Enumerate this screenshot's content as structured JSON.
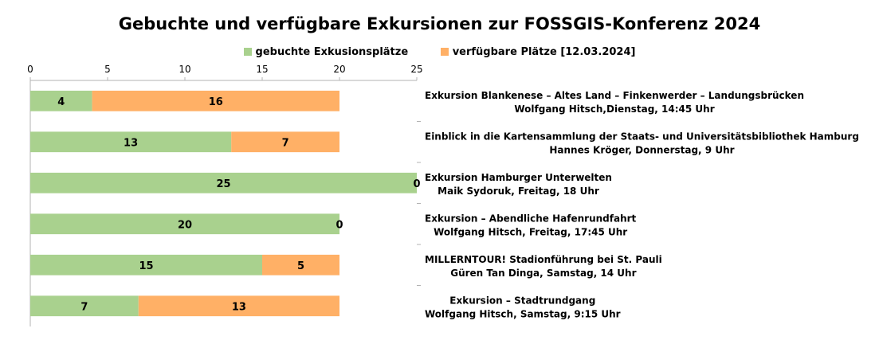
{
  "chart_data": {
    "type": "bar",
    "orientation": "horizontal",
    "stacked": true,
    "title": "Gebuchte und verfügbare Exkursionen zur FOSSGIS-Konferenz 2024",
    "xlim": [
      0,
      25
    ],
    "xticks": [
      0,
      5,
      10,
      15,
      20,
      25
    ],
    "x_axis_position": "top",
    "category_labels_position": "right",
    "grid": false,
    "legend_position": "top",
    "categories": [
      [
        "Exkursion Blankenese – Altes Land – Finkenwerder – Landungsbrücken",
        "Wolfgang Hitsch,Dienstag, 14:45 Uhr"
      ],
      [
        "Einblick in die Kartensammlung der Staats- und Universitätsbibliothek Hamburg",
        "Hannes Kröger, Donnerstag, 9 Uhr"
      ],
      [
        "Exkursion Hamburger Unterwelten",
        "Maik Sydoruk, Freitag, 18 Uhr"
      ],
      [
        "Exkursion – Abendliche Hafenrundfahrt",
        "Wolfgang Hitsch, Freitag, 17:45 Uhr"
      ],
      [
        "MILLERNTOUR! Stadionführung bei St. Pauli",
        "Güren Tan Dinga, Samstag, 14 Uhr"
      ],
      [
        "Exkursion – Stadtrundgang",
        "Wolfgang Hitsch, Samstag, 9:15 Uhr"
      ]
    ],
    "series": [
      {
        "name": "gebuchte Exkusionsplätze",
        "color": "#a9d18e",
        "values": [
          4,
          13,
          25,
          20,
          15,
          7
        ]
      },
      {
        "name": "verfügbare Plätze [12.03.2024]",
        "color": "#ffb066",
        "values": [
          16,
          7,
          0,
          0,
          5,
          13
        ]
      }
    ]
  }
}
